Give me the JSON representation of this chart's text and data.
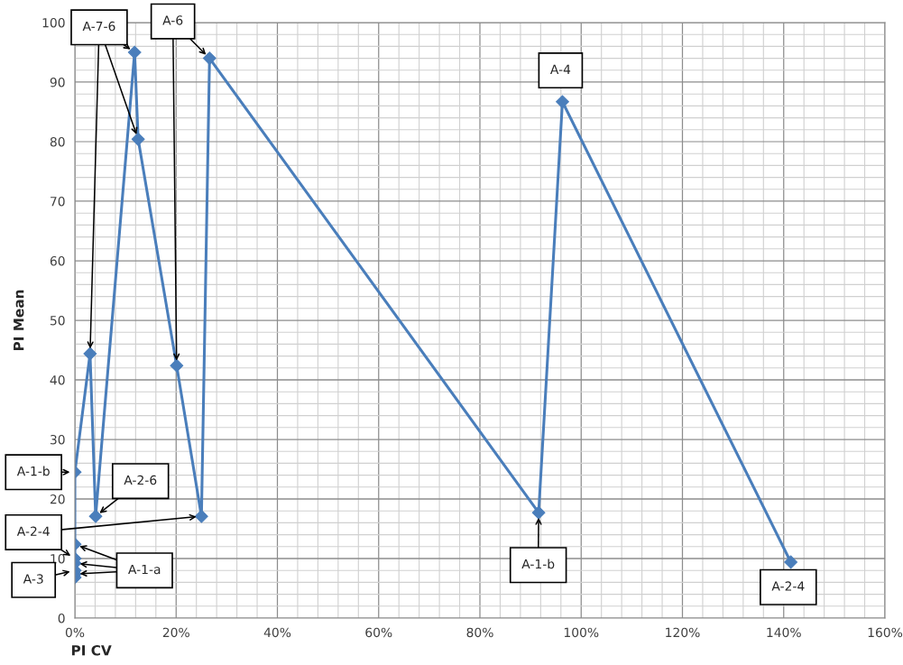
{
  "chart_data": {
    "type": "line",
    "xlabel": "PI CV",
    "ylabel": "PI Mean",
    "x": [
      0,
      0,
      0,
      0,
      0,
      0,
      0,
      3,
      4.1,
      11.8,
      12.5,
      20.1,
      25,
      26.6,
      91.6,
      96.3,
      141.4
    ],
    "series": [
      {
        "color": "#4a7ebb",
        "values": [
          6.8,
          7.4,
          8,
          9.2,
          10,
          12.4,
          24.5,
          44.4,
          17.1,
          95,
          80.4,
          42.4,
          17.1,
          94,
          17.7,
          86.7,
          9.4
        ]
      }
    ],
    "xlim": [
      0,
      160
    ],
    "xticks": [
      {
        "value": 0,
        "label": "0%"
      },
      {
        "value": 20,
        "label": "20%"
      },
      {
        "value": 40,
        "label": "40%"
      },
      {
        "value": 60,
        "label": "60%"
      },
      {
        "value": 80,
        "label": "80%"
      },
      {
        "value": 100,
        "label": "100%"
      },
      {
        "value": 120,
        "label": "120%"
      },
      {
        "value": 140,
        "label": "140%"
      },
      {
        "value": 160,
        "label": "160%"
      }
    ],
    "ylim": [
      0,
      100
    ],
    "yticks": [
      0,
      10,
      20,
      30,
      40,
      50,
      60,
      70,
      80,
      90,
      100
    ],
    "grid": true,
    "marker": "diamond",
    "line_style": "solid",
    "annotations": [
      {
        "text": "A-7-6",
        "x": 11.8,
        "y": 95
      },
      {
        "text": "A-6",
        "x": 26.6,
        "y": 94
      },
      {
        "text": "A-4",
        "x": 96.3,
        "y": 86.7
      },
      {
        "text": "A-1-b",
        "x": 0,
        "y": 24.5
      },
      {
        "text": "A-2-6",
        "x": 4.1,
        "y": 17.1
      },
      {
        "text": "A-2-4",
        "x": 25,
        "y": 17.1
      },
      {
        "text": "A-3",
        "x": 0,
        "y": 8
      },
      {
        "text": "A-1-a",
        "x": 0,
        "y": 12.4
      },
      {
        "text": "A-1-b",
        "x": 91.6,
        "y": 17.7
      },
      {
        "text": "A-2-4",
        "x": 141.4,
        "y": 9.4
      }
    ]
  }
}
